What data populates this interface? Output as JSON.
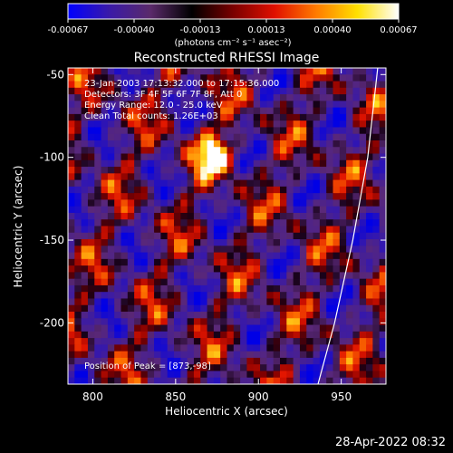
{
  "colorbar": {
    "ticks": [
      "-0.00067",
      "-0.00040",
      "-0.00013",
      "0.00013",
      "0.00040",
      "0.00067"
    ],
    "units": "(photons cm⁻² s⁻¹ asec⁻²)",
    "colors": [
      "#0000ff",
      "#3a1aa8",
      "#5a2a6a",
      "#000000",
      "#7a0000",
      "#e01000",
      "#ff7a00",
      "#ffe000",
      "#ffffff"
    ]
  },
  "chart_data": {
    "type": "heatmap",
    "title": "Reconstructed RHESSI Image",
    "xlabel": "Heliocentric X (arcsec)",
    "ylabel": "Heliocentric Y (arcsec)",
    "xlim": [
      785,
      977
    ],
    "ylim": [
      -237,
      -46
    ],
    "xticks": [
      800,
      850,
      900,
      950
    ],
    "yticks": [
      -50,
      -100,
      -150,
      -200
    ],
    "annotations": [
      "23-Jan-2003 17:13:32.000 to 17:15:36.000",
      "Detectors: 3F 4F 5F 6F 7F 8F, Att 0",
      "Energy Range: 12.0 - 25.0 keV",
      "Clean     Total counts: 1.26E+03"
    ],
    "peak_label": "Position of Peak = [873,-98]",
    "peak": [
      873,
      -98
    ],
    "limb_curve": [
      [
        972,
        -46
      ],
      [
        966,
        -100
      ],
      [
        957,
        -150
      ],
      [
        946,
        -200
      ],
      [
        936,
        -237
      ]
    ]
  },
  "footer": {
    "date": "28-Apr-2022 08:32"
  }
}
